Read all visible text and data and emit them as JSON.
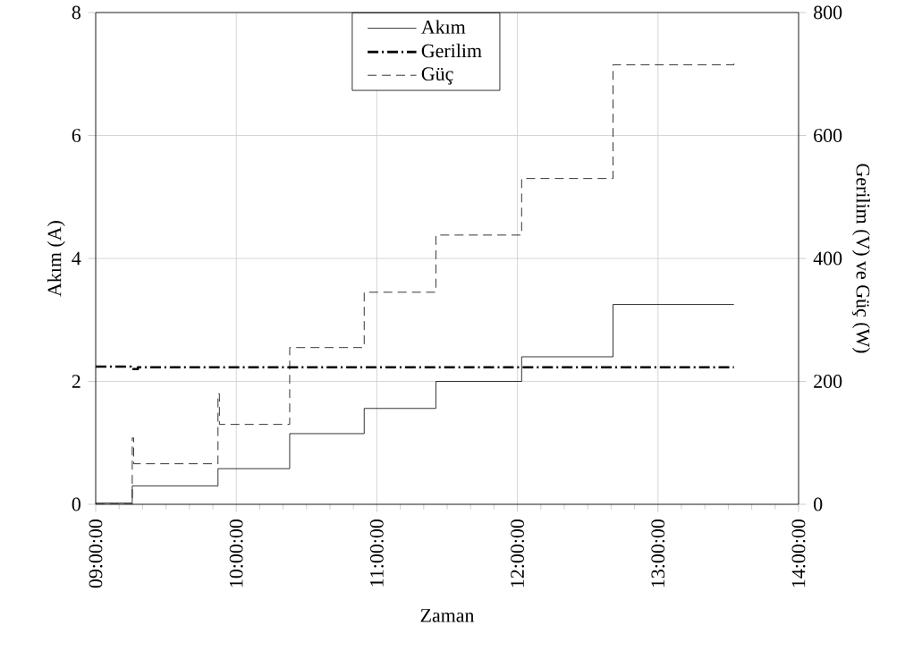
{
  "chart_data": {
    "type": "step",
    "xlabel": "Zaman",
    "ylabel": "Akım (A)",
    "y2label": "Gerilim (V) ve Güç (W)",
    "xlim": [
      9,
      14
    ],
    "xticks": [
      {
        "value": 9,
        "label": "09:00:00"
      },
      {
        "value": 10,
        "label": "10:00:00"
      },
      {
        "value": 11,
        "label": "11:00:00"
      },
      {
        "value": 12,
        "label": "12:00:00"
      },
      {
        "value": 13,
        "label": "13:00:00"
      },
      {
        "value": 14,
        "label": "14:00:00"
      }
    ],
    "ylim": [
      0,
      8
    ],
    "yticks": [
      0,
      2,
      4,
      6,
      8
    ],
    "y2lim": [
      0,
      800
    ],
    "y2ticks": [
      0,
      200,
      400,
      600,
      800
    ],
    "grid": true,
    "legend": "top",
    "marker": "none",
    "series": [
      {
        "name": "Akım",
        "color": "#000000",
        "line_style": "solid",
        "x": [
          9.0,
          9.26,
          9.87,
          10.38,
          10.91,
          11.42,
          12.03,
          12.68,
          13.54
        ],
        "values": [
          0.02,
          0.3,
          0.58,
          1.15,
          1.56,
          2.0,
          2.4,
          3.25,
          3.25
        ]
      },
      {
        "name": "Gerilim",
        "color": "#000000",
        "line_style": "dashdot",
        "axis": "y2",
        "x": [
          9.0,
          9.25,
          9.3,
          13.54
        ],
        "values": [
          224,
          220,
          223,
          223
        ]
      },
      {
        "name": "Güç",
        "color": "#000000",
        "line_style": "dashed",
        "axis": "y2",
        "x": [
          9.0,
          9.26,
          9.27,
          9.87,
          9.88,
          10.38,
          10.91,
          11.42,
          12.03,
          12.68,
          13.54
        ],
        "values": [
          0,
          108,
          66,
          180,
          130,
          255,
          345,
          438,
          530,
          715,
          720
        ]
      }
    ]
  }
}
